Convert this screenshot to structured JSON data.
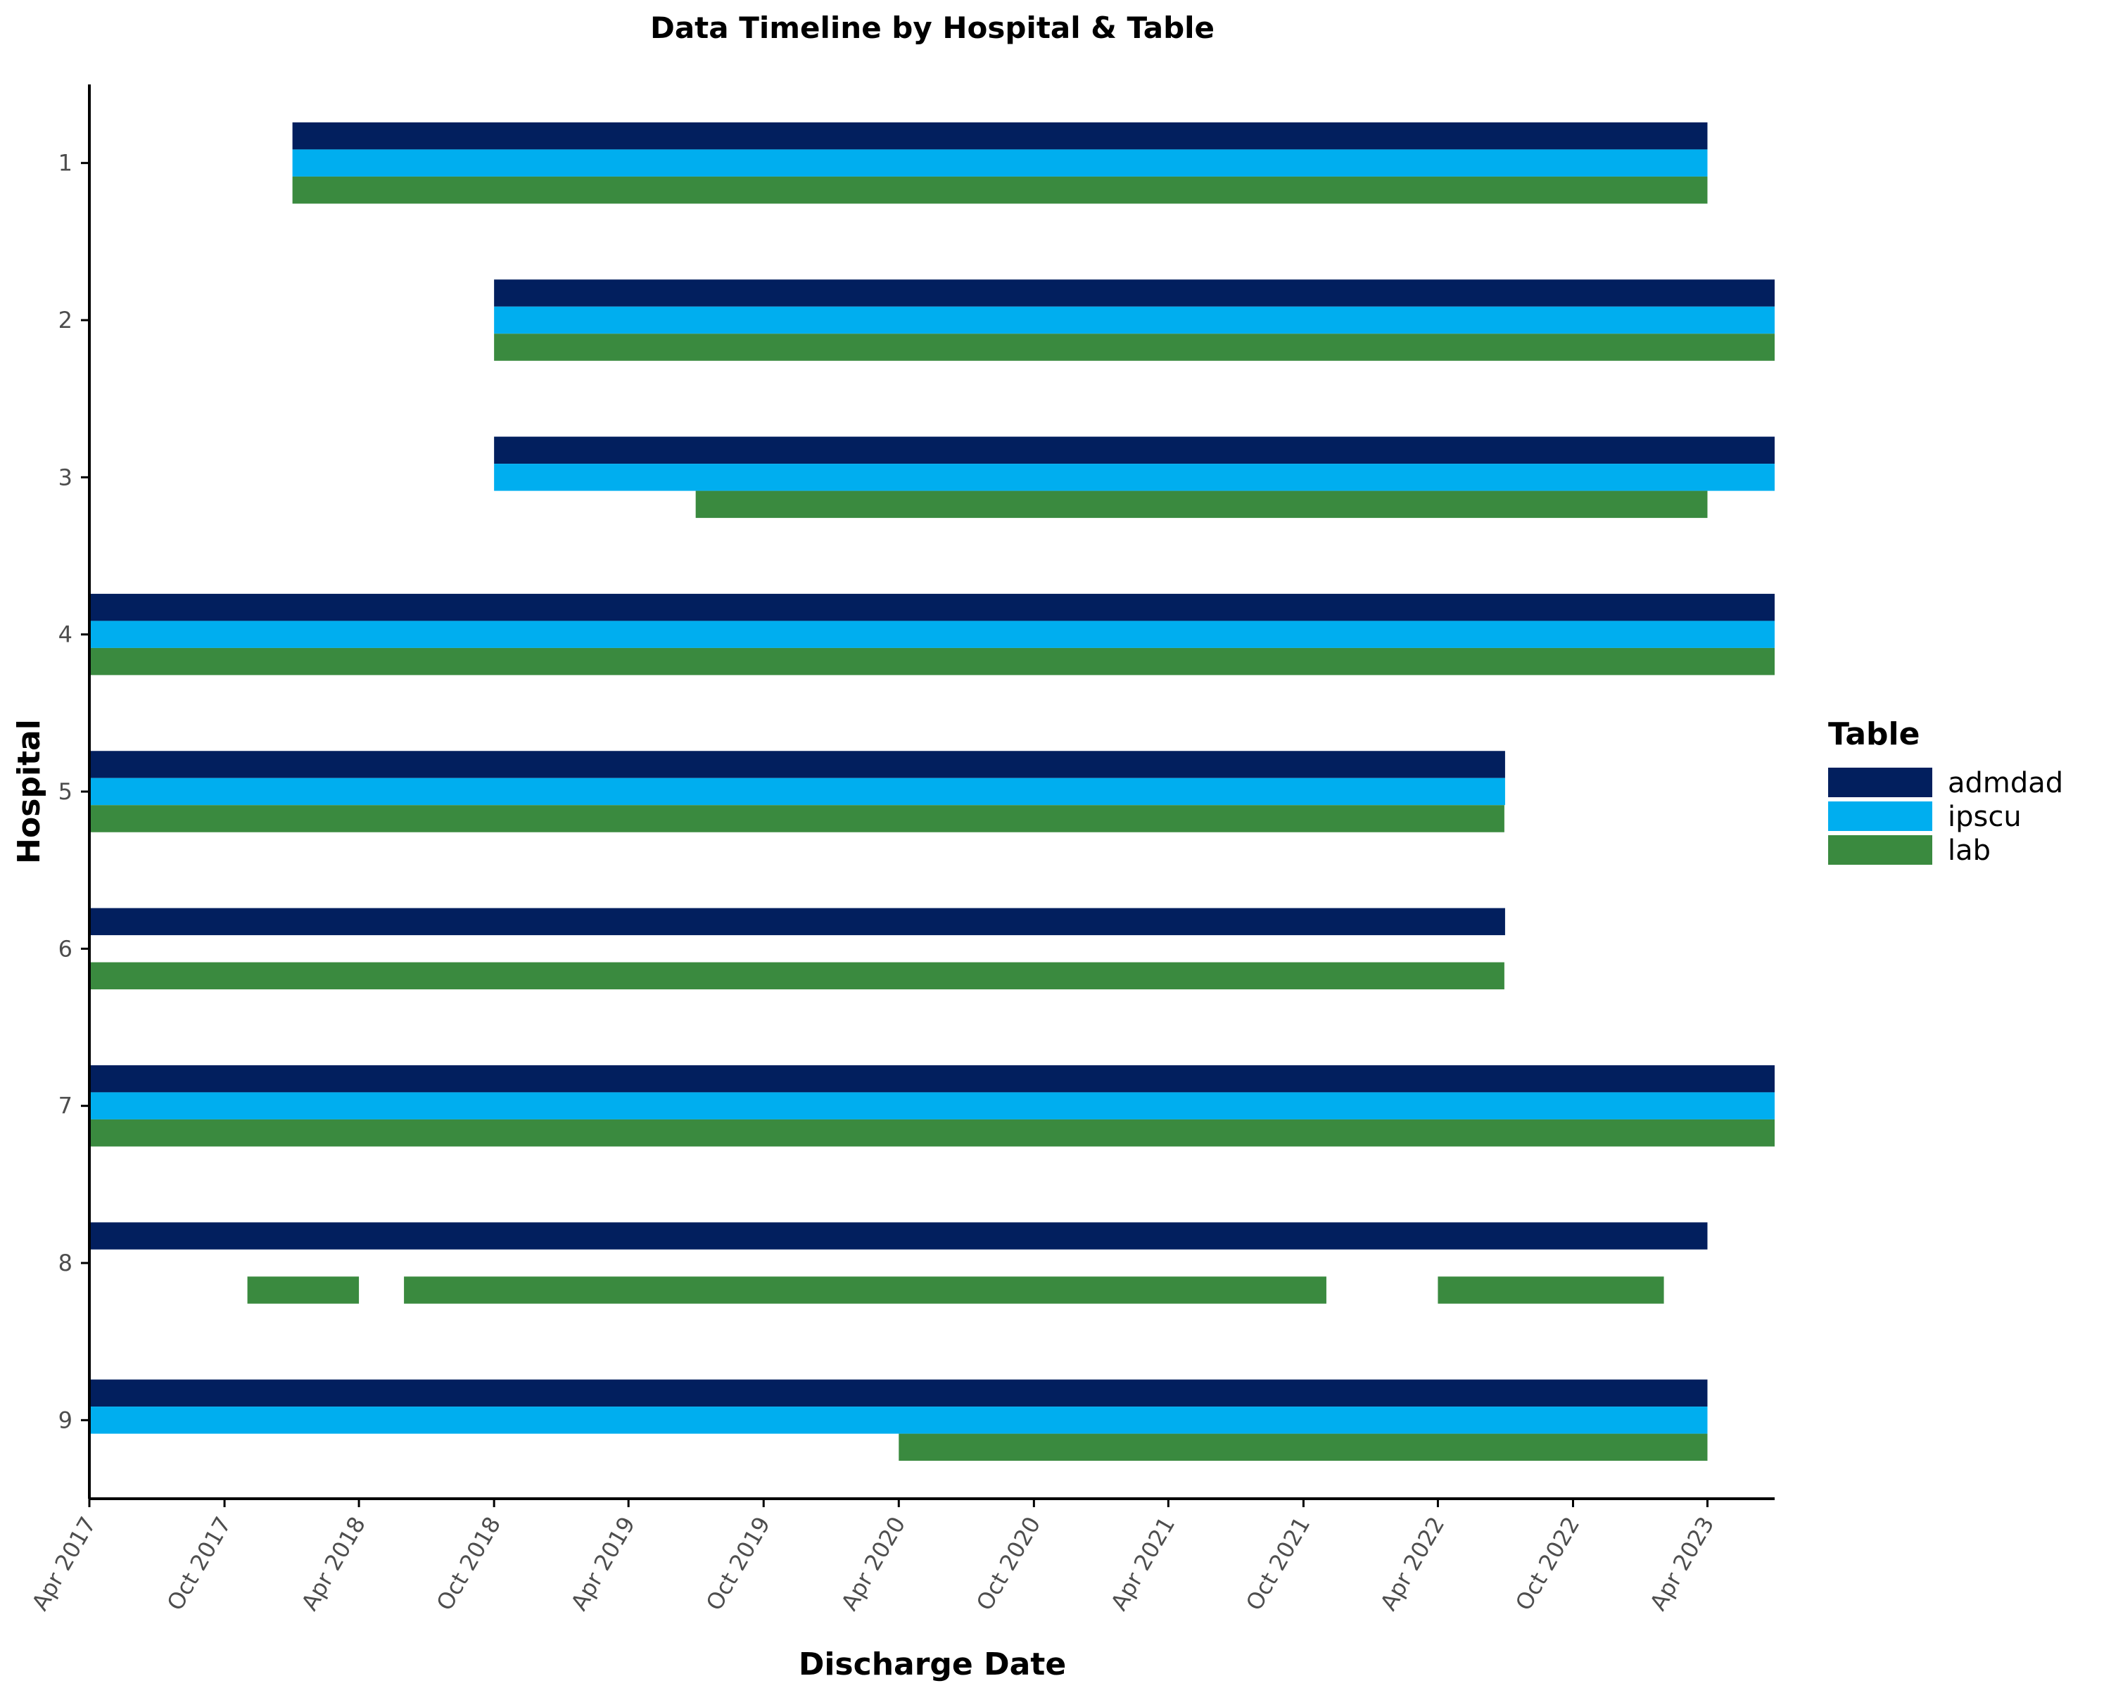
{
  "chart_data": {
    "type": "timeline",
    "title": "Data Timeline by Hospital & Table",
    "xlabel": "Discharge Date",
    "ylabel": "Hospital",
    "xlim": [
      "2017-04-01",
      "2023-07-01"
    ],
    "x_ticks": [
      "Apr 2017",
      "Oct 2017",
      "Apr 2018",
      "Oct 2018",
      "Apr 2019",
      "Oct 2019",
      "Apr 2020",
      "Oct 2020",
      "Apr 2021",
      "Oct 2021",
      "Apr 2022",
      "Oct 2022",
      "Apr 2023"
    ],
    "x_tick_dates": [
      "2017-04-01",
      "2017-10-01",
      "2018-04-01",
      "2018-10-01",
      "2019-04-01",
      "2019-10-01",
      "2020-04-01",
      "2020-10-01",
      "2021-04-01",
      "2021-10-01",
      "2022-04-01",
      "2022-10-01",
      "2023-04-01"
    ],
    "hospitals": [
      "1",
      "2",
      "3",
      "4",
      "5",
      "6",
      "7",
      "8",
      "9"
    ],
    "legend": {
      "title": "Table",
      "position": "right",
      "entries": [
        "admdad",
        "ipscu",
        "lab"
      ]
    },
    "colors": {
      "admdad": "#021f5e",
      "ipscu": "#00aeef",
      "lab": "#3a8a3f"
    },
    "grid": false,
    "segments": [
      {
        "hospital": "1",
        "table": "admdad",
        "start": "2018-01-01",
        "end": "2023-04-01"
      },
      {
        "hospital": "1",
        "table": "ipscu",
        "start": "2018-01-01",
        "end": "2023-04-01"
      },
      {
        "hospital": "1",
        "table": "lab",
        "start": "2018-01-01",
        "end": "2023-04-01"
      },
      {
        "hospital": "2",
        "table": "admdad",
        "start": "2018-10-01",
        "end": "2023-07-01"
      },
      {
        "hospital": "2",
        "table": "ipscu",
        "start": "2018-10-01",
        "end": "2023-07-01"
      },
      {
        "hospital": "2",
        "table": "lab",
        "start": "2018-10-01",
        "end": "2023-07-01"
      },
      {
        "hospital": "3",
        "table": "admdad",
        "start": "2018-10-01",
        "end": "2023-07-01"
      },
      {
        "hospital": "3",
        "table": "ipscu",
        "start": "2018-10-01",
        "end": "2023-07-01"
      },
      {
        "hospital": "3",
        "table": "lab",
        "start": "2019-07-01",
        "end": "2023-04-01"
      },
      {
        "hospital": "4",
        "table": "admdad",
        "start": "2017-04-01",
        "end": "2023-07-01"
      },
      {
        "hospital": "4",
        "table": "ipscu",
        "start": "2017-04-01",
        "end": "2023-07-01"
      },
      {
        "hospital": "4",
        "table": "lab",
        "start": "2017-04-01",
        "end": "2023-07-01"
      },
      {
        "hospital": "5",
        "table": "admdad",
        "start": "2017-04-01",
        "end": "2022-07-01"
      },
      {
        "hospital": "5",
        "table": "ipscu",
        "start": "2017-04-01",
        "end": "2022-07-01"
      },
      {
        "hospital": "5",
        "table": "lab",
        "start": "2017-04-01",
        "end": "2022-06-30"
      },
      {
        "hospital": "6",
        "table": "admdad",
        "start": "2017-04-01",
        "end": "2022-07-01"
      },
      {
        "hospital": "6",
        "table": "lab",
        "start": "2017-04-01",
        "end": "2022-06-30"
      },
      {
        "hospital": "7",
        "table": "admdad",
        "start": "2017-04-01",
        "end": "2023-07-01"
      },
      {
        "hospital": "7",
        "table": "ipscu",
        "start": "2017-04-01",
        "end": "2023-07-01"
      },
      {
        "hospital": "7",
        "table": "lab",
        "start": "2017-04-01",
        "end": "2023-07-01"
      },
      {
        "hospital": "8",
        "table": "admdad",
        "start": "2017-04-01",
        "end": "2023-04-01"
      },
      {
        "hospital": "8",
        "table": "lab",
        "start": "2017-11-01",
        "end": "2018-04-01"
      },
      {
        "hospital": "8",
        "table": "lab",
        "start": "2018-06-01",
        "end": "2021-11-01"
      },
      {
        "hospital": "8",
        "table": "lab",
        "start": "2022-04-01",
        "end": "2023-02-01"
      },
      {
        "hospital": "9",
        "table": "admdad",
        "start": "2017-04-01",
        "end": "2023-04-01"
      },
      {
        "hospital": "9",
        "table": "ipscu",
        "start": "2017-04-01",
        "end": "2023-04-01"
      },
      {
        "hospital": "9",
        "table": "lab",
        "start": "2020-04-01",
        "end": "2023-04-01"
      }
    ]
  }
}
